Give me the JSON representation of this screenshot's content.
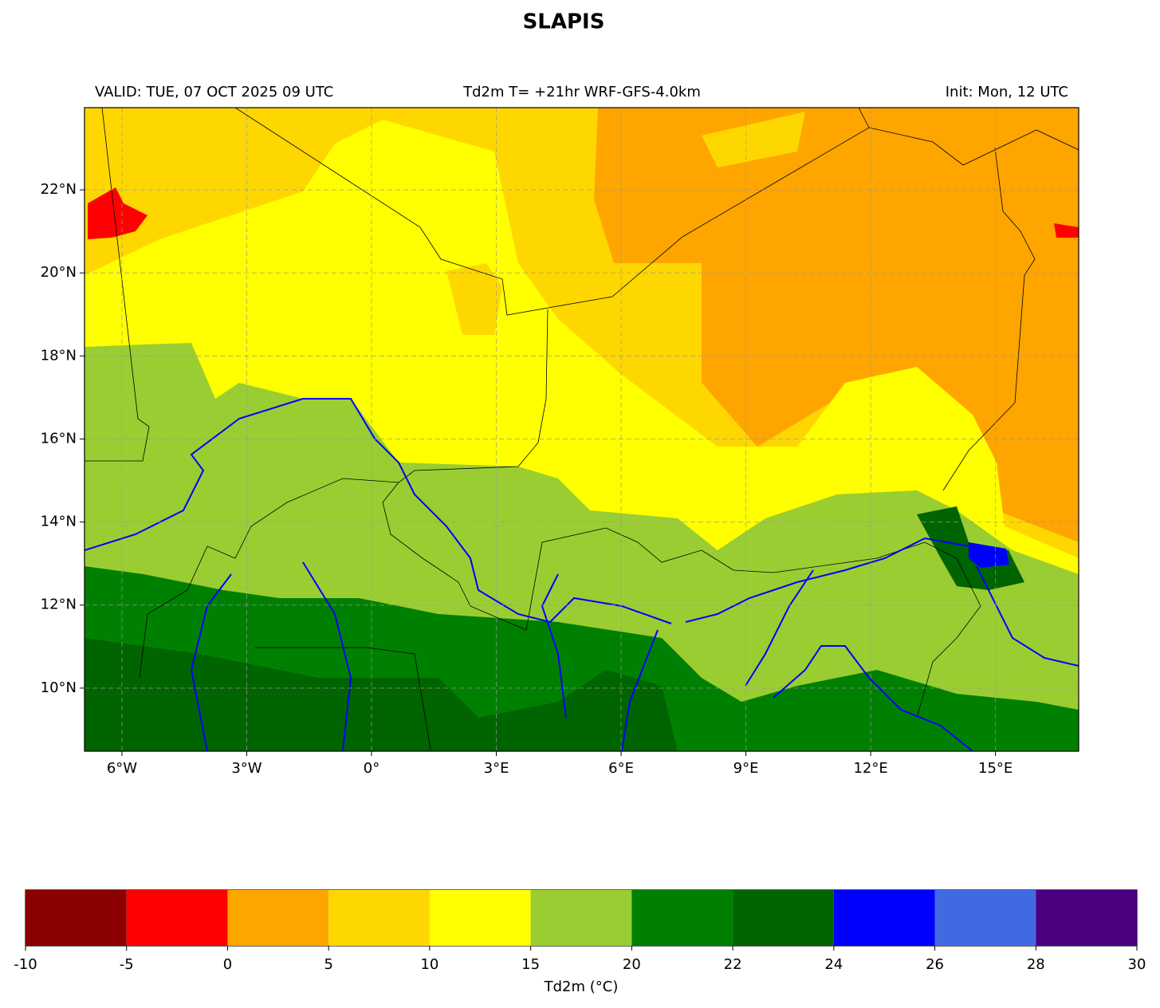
{
  "header": {
    "title": "SLAPIS",
    "valid": "VALID: TUE, 07 OCT 2025 09 UTC",
    "subtitle": "Td2m T= +21hr WRF-GFS-4.0km",
    "init": "Init: Mon, 12 UTC"
  },
  "map": {
    "xlim": [
      -6.9,
      17.0
    ],
    "ylim": [
      8.48,
      23.98
    ],
    "xticks": [
      {
        "value": -6,
        "label": "6°W"
      },
      {
        "value": -3,
        "label": "3°W"
      },
      {
        "value": 0,
        "label": "0°"
      },
      {
        "value": 3,
        "label": "3°E"
      },
      {
        "value": 6,
        "label": "6°E"
      },
      {
        "value": 9,
        "label": "9°E"
      },
      {
        "value": 12,
        "label": "12°E"
      },
      {
        "value": 15,
        "label": "15°E"
      }
    ],
    "yticks": [
      {
        "value": 10,
        "label": "10°N"
      },
      {
        "value": 12,
        "label": "12°N"
      },
      {
        "value": 14,
        "label": "14°N"
      },
      {
        "value": 16,
        "label": "16°N"
      },
      {
        "value": 18,
        "label": "18°N"
      },
      {
        "value": 20,
        "label": "20°N"
      },
      {
        "value": 22,
        "label": "22°N"
      }
    ]
  },
  "colorbar": {
    "label": "Td2m (°C)",
    "ticks": [
      -10,
      -5,
      0,
      5,
      10,
      15,
      20,
      22,
      24,
      26,
      28,
      30
    ],
    "colors": [
      "#8b0000",
      "#ff0000",
      "#ffa500",
      "#ffd700",
      "#ffff00",
      "#9acd32",
      "#008000",
      "#006400",
      "#0000ff",
      "#4169e1",
      "#4b0082"
    ]
  }
}
